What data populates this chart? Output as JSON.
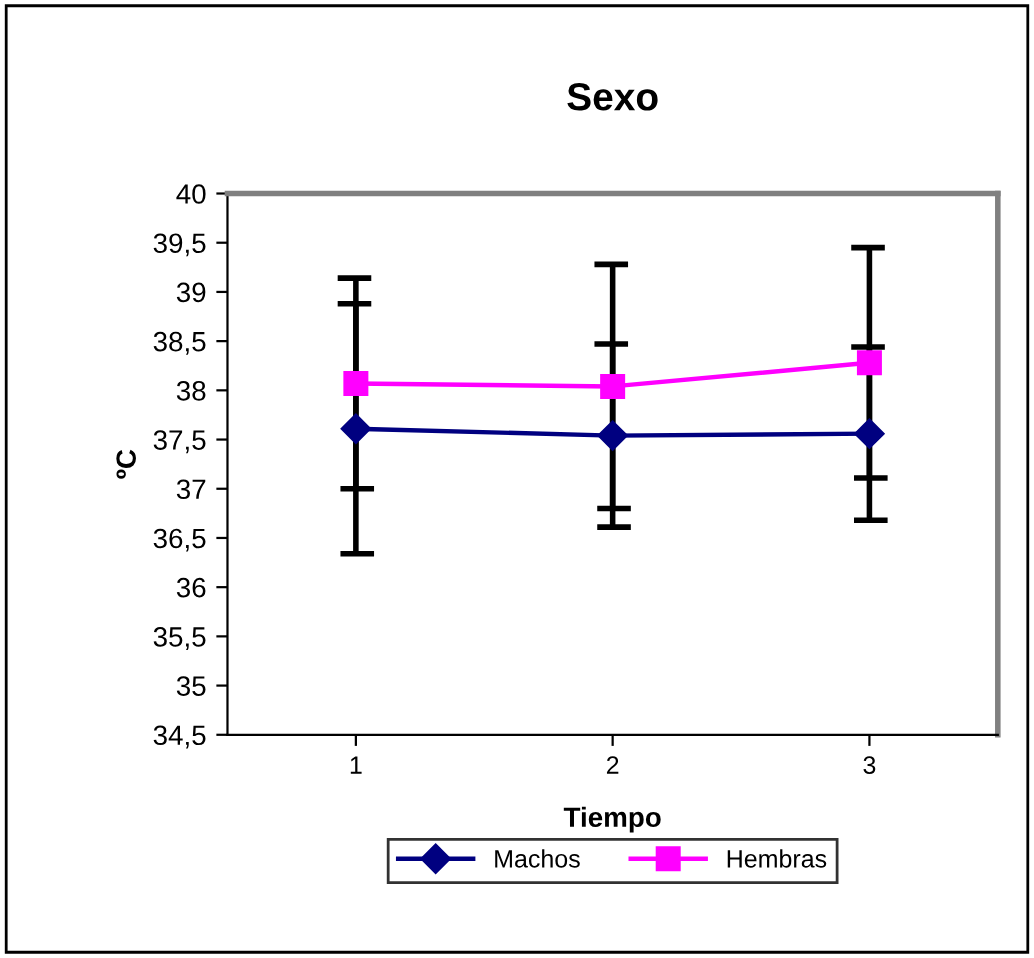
{
  "chart_data": {
    "type": "line",
    "title": "Sexo",
    "xlabel": "Tiempo",
    "ylabel": "ºC",
    "categories": [
      "1",
      "2",
      "3"
    ],
    "series": [
      {
        "name": "Machos",
        "color": "#000080",
        "marker": "diamond",
        "values": [
          37.61,
          37.54,
          37.56
        ],
        "errors": [
          1.27,
          0.93,
          0.88
        ]
      },
      {
        "name": "Hembras",
        "color": "#ff00ff",
        "marker": "square",
        "values": [
          38.07,
          38.04,
          38.28
        ],
        "errors": [
          1.07,
          1.24,
          1.17
        ]
      }
    ],
    "ylim": [
      34.5,
      40
    ],
    "yticks": [
      {
        "value": 34.5,
        "label": "34,5"
      },
      35,
      {
        "value": 35.5,
        "label": "35,5"
      },
      36,
      {
        "value": 36.5,
        "label": "36,5"
      },
      37,
      {
        "value": 37.5,
        "label": "37,5"
      },
      38,
      {
        "value": 38.5,
        "label": "38,5"
      },
      39,
      {
        "value": 39.5,
        "label": "39,5"
      },
      40
    ],
    "grid": false,
    "legend": "bottom"
  }
}
